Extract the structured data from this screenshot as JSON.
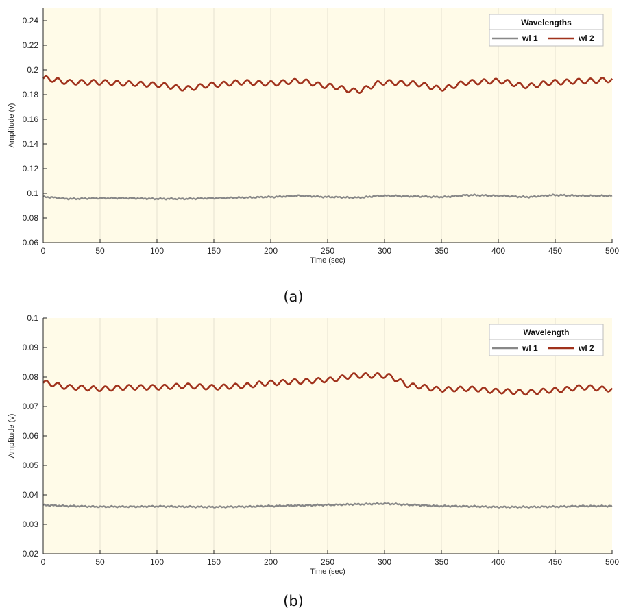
{
  "colors": {
    "plot_bg": "#fffbe8",
    "grid": "#e4e0d0",
    "axis": "#262626",
    "series_wl1": "#888888",
    "series_wl2": "#a0321c"
  },
  "chart_data": [
    {
      "type": "line",
      "caption": "(a)",
      "xlabel": "Time (sec)",
      "ylabel": "Amplitude (v)",
      "xlim": [
        0,
        500
      ],
      "ylim": [
        0.06,
        0.25
      ],
      "grid": "vertical",
      "xticks": [
        0,
        50,
        100,
        150,
        200,
        250,
        300,
        350,
        400,
        450,
        500
      ],
      "xtick_labels": [
        "0",
        "50",
        "100",
        "150",
        "200",
        "250",
        "300",
        "350",
        "400",
        "450",
        "500"
      ],
      "yticks": [
        0.06,
        0.08,
        0.1,
        0.12,
        0.14,
        0.16,
        0.18,
        0.2,
        0.22,
        0.24
      ],
      "ytick_labels": [
        "0.06",
        "0.08",
        "0.1",
        "0.12",
        "0.14",
        "0.16",
        "0.18",
        "0.2",
        "0.22",
        "0.24"
      ],
      "legend": {
        "title": "Wavelengths",
        "placement": "top-right",
        "entries": [
          "wl 1",
          "wl 2"
        ]
      },
      "series": [
        {
          "name": "wl 1",
          "x": [
            0,
            25,
            50,
            75,
            100,
            125,
            150,
            175,
            200,
            225,
            250,
            275,
            300,
            325,
            350,
            375,
            400,
            425,
            450,
            475,
            500
          ],
          "values": [
            0.097,
            0.0955,
            0.096,
            0.096,
            0.0955,
            0.0955,
            0.096,
            0.0965,
            0.097,
            0.098,
            0.097,
            0.0965,
            0.098,
            0.0975,
            0.097,
            0.0985,
            0.098,
            0.097,
            0.0985,
            0.098,
            0.098
          ]
        },
        {
          "name": "wl 2",
          "x": [
            0,
            25,
            50,
            75,
            100,
            125,
            150,
            175,
            200,
            225,
            250,
            275,
            300,
            325,
            350,
            375,
            400,
            425,
            450,
            475,
            500
          ],
          "values": [
            0.193,
            0.19,
            0.19,
            0.189,
            0.188,
            0.185,
            0.188,
            0.19,
            0.189,
            0.191,
            0.187,
            0.183,
            0.19,
            0.189,
            0.185,
            0.19,
            0.191,
            0.187,
            0.19,
            0.191,
            0.192
          ]
        }
      ]
    },
    {
      "type": "line",
      "caption": "(b)",
      "xlabel": "Time (sec)",
      "ylabel": "Amplitude (v)",
      "xlim": [
        0,
        500
      ],
      "ylim": [
        0.02,
        0.1
      ],
      "grid": "vertical",
      "xticks": [
        0,
        50,
        100,
        150,
        200,
        250,
        300,
        350,
        400,
        450,
        500
      ],
      "xtick_labels": [
        "0",
        "50",
        "100",
        "150",
        "200",
        "250",
        "300",
        "350",
        "400",
        "450",
        "500"
      ],
      "yticks": [
        0.02,
        0.03,
        0.04,
        0.05,
        0.06,
        0.07,
        0.08,
        0.09,
        0.1
      ],
      "ytick_labels": [
        "0.02",
        "0.03",
        "0.04",
        "0.05",
        "0.06",
        "0.07",
        "0.08",
        "0.09",
        "0.1"
      ],
      "legend": {
        "title": "Wavelength",
        "placement": "top-right",
        "entries": [
          "wl 1",
          "wl 2"
        ]
      },
      "series": [
        {
          "name": "wl 1",
          "x": [
            0,
            25,
            50,
            75,
            100,
            125,
            150,
            175,
            200,
            225,
            250,
            275,
            300,
            325,
            350,
            375,
            400,
            425,
            450,
            475,
            500
          ],
          "values": [
            0.0365,
            0.0362,
            0.036,
            0.036,
            0.0361,
            0.036,
            0.0359,
            0.036,
            0.0362,
            0.0364,
            0.0366,
            0.0368,
            0.037,
            0.0366,
            0.0362,
            0.0361,
            0.0359,
            0.0359,
            0.036,
            0.0362,
            0.0362
          ]
        },
        {
          "name": "wl 2",
          "x": [
            0,
            25,
            50,
            75,
            100,
            125,
            150,
            175,
            200,
            225,
            250,
            275,
            300,
            325,
            350,
            375,
            400,
            425,
            450,
            475,
            500
          ],
          "values": [
            0.078,
            0.0765,
            0.076,
            0.0765,
            0.0765,
            0.077,
            0.0765,
            0.077,
            0.078,
            0.0785,
            0.079,
            0.0805,
            0.0805,
            0.077,
            0.0758,
            0.076,
            0.0752,
            0.0748,
            0.0755,
            0.0765,
            0.0758
          ]
        }
      ]
    }
  ]
}
